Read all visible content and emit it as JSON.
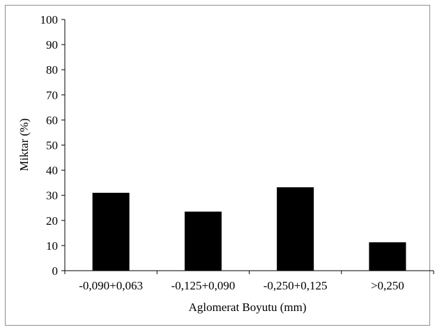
{
  "chart_data": {
    "type": "bar",
    "title": "",
    "xlabel": "Aglomerat Boyutu  (mm)",
    "ylabel": "Miktar (%)",
    "categories": [
      "-0,090+0,063",
      "-0,125+0,090",
      "-0,250+0,125",
      ">0,250"
    ],
    "values": [
      31,
      23.5,
      33.2,
      11.3
    ],
    "ylim": [
      0,
      100
    ],
    "yticks": [
      "0",
      "10",
      "20",
      "30",
      "40",
      "50",
      "60",
      "70",
      "80",
      "90",
      "100"
    ],
    "grid": false,
    "legend": "none",
    "bar_color": "#000000"
  }
}
